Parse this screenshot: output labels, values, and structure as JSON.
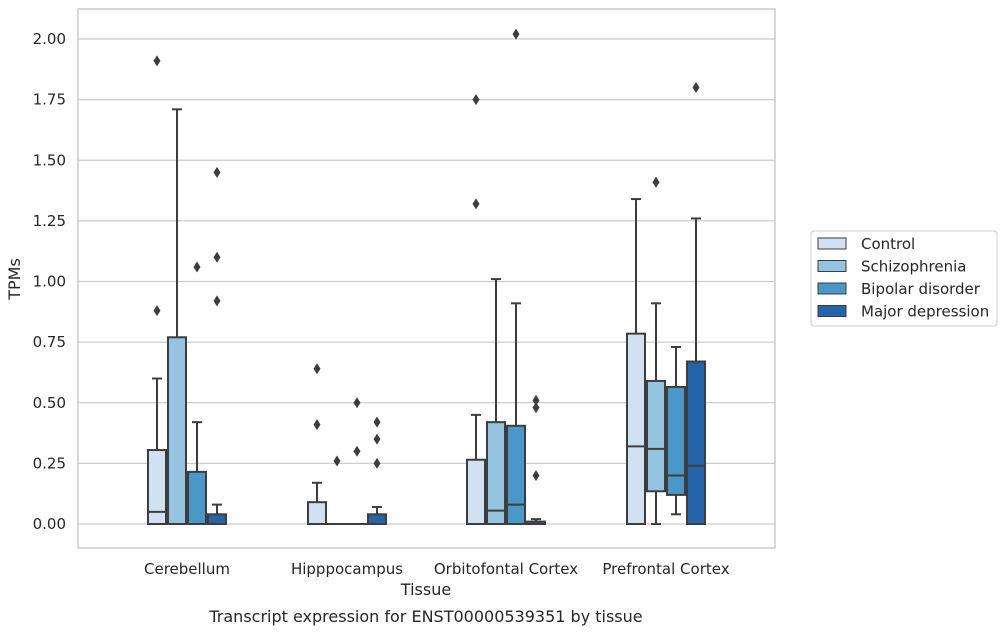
{
  "chart_data": {
    "type": "box",
    "title": "",
    "caption": "Transcript expression for ENST00000539351 by tissue",
    "xlabel": "Tissue",
    "ylabel": "TPMs",
    "ylim": [
      -0.1,
      2.12
    ],
    "yticks": [
      "0.00",
      "0.25",
      "0.50",
      "0.75",
      "1.00",
      "1.25",
      "1.50",
      "1.75",
      "2.00"
    ],
    "ytick_values": [
      0,
      0.25,
      0.5,
      0.75,
      1.0,
      1.25,
      1.5,
      1.75,
      2.0
    ],
    "grid": "horizontal",
    "legend_position": "right",
    "categories": [
      "Cerebellum",
      "Hipppocampus",
      "Orbitofontal Cortex",
      "Prefrontal Cortex"
    ],
    "series": [
      {
        "name": "Control",
        "color": "#d0e1f2",
        "boxes": [
          {
            "whisker_low": 0,
            "q1": 0,
            "median": 0.05,
            "q3": 0.305,
            "whisker_high": 0.6,
            "outliers": [
              0.88,
              1.91
            ]
          },
          {
            "whisker_low": 0,
            "q1": 0,
            "median": 0,
            "q3": 0.09,
            "whisker_high": 0.17,
            "outliers": [
              0.41,
              0.64
            ]
          },
          {
            "whisker_low": 0,
            "q1": 0,
            "median": 0,
            "q3": 0.265,
            "whisker_high": 0.45,
            "outliers": [
              1.32,
              1.75
            ]
          },
          {
            "whisker_low": 0,
            "q1": 0,
            "median": 0.32,
            "q3": 0.785,
            "whisker_high": 1.34,
            "outliers": []
          }
        ]
      },
      {
        "name": "Schizophrenia",
        "color": "#94c4df",
        "boxes": [
          {
            "whisker_low": 0,
            "q1": 0,
            "median": 0,
            "q3": 0.77,
            "whisker_high": 1.71,
            "outliers": []
          },
          {
            "whisker_low": 0,
            "q1": 0,
            "median": 0,
            "q3": 0,
            "whisker_high": 0,
            "outliers": [
              0.26
            ]
          },
          {
            "whisker_low": 0,
            "q1": 0,
            "median": 0.055,
            "q3": 0.42,
            "whisker_high": 1.01,
            "outliers": []
          },
          {
            "whisker_low": 0,
            "q1": 0.135,
            "median": 0.31,
            "q3": 0.59,
            "whisker_high": 0.91,
            "outliers": [
              1.41
            ]
          }
        ]
      },
      {
        "name": "Bipolar disorder",
        "color": "#4a98c9",
        "boxes": [
          {
            "whisker_low": 0,
            "q1": 0,
            "median": 0,
            "q3": 0.215,
            "whisker_high": 0.42,
            "outliers": [
              1.06
            ]
          },
          {
            "whisker_low": 0,
            "q1": 0,
            "median": 0,
            "q3": 0,
            "whisker_high": 0,
            "outliers": [
              0.3,
              0.5
            ]
          },
          {
            "whisker_low": 0,
            "q1": 0,
            "median": 0.08,
            "q3": 0.405,
            "whisker_high": 0.91,
            "outliers": [
              2.02
            ]
          },
          {
            "whisker_low": 0.04,
            "q1": 0.12,
            "median": 0.2,
            "q3": 0.565,
            "whisker_high": 0.73,
            "outliers": []
          }
        ]
      },
      {
        "name": "Major depression",
        "color": "#2464a8",
        "boxes": [
          {
            "whisker_low": 0,
            "q1": 0,
            "median": 0,
            "q3": 0.04,
            "whisker_high": 0.08,
            "outliers": [
              0.92,
              1.1,
              1.45
            ]
          },
          {
            "whisker_low": 0,
            "q1": 0,
            "median": 0,
            "q3": 0.04,
            "whisker_high": 0.07,
            "outliers": [
              0.25,
              0.35,
              0.42
            ]
          },
          {
            "whisker_low": 0,
            "q1": 0,
            "median": 0,
            "q3": 0.01,
            "whisker_high": 0.02,
            "outliers": [
              0.2,
              0.48,
              0.51
            ]
          },
          {
            "whisker_low": 0,
            "q1": 0,
            "median": 0.24,
            "q3": 0.67,
            "whisker_high": 1.26,
            "outliers": [
              1.8
            ]
          }
        ]
      }
    ]
  }
}
